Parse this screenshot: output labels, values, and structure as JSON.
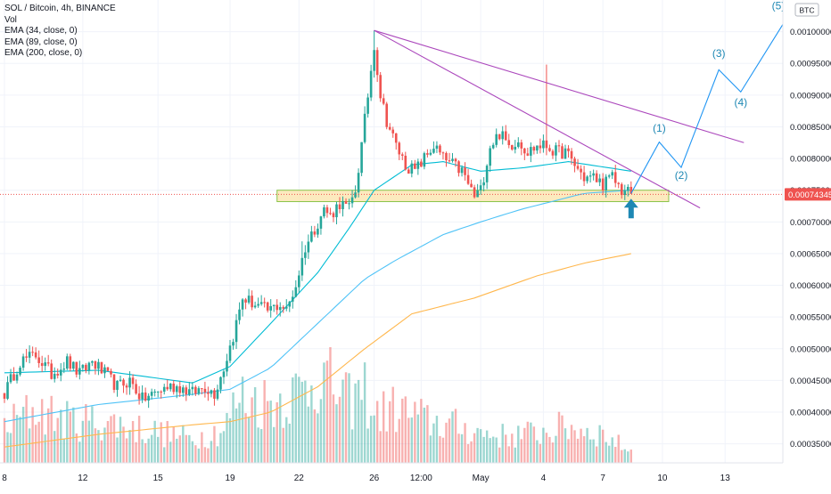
{
  "chart_data": {
    "type": "candlestick",
    "title": "SOL / Bitcoin, 4h, BINANCE",
    "indicators": [
      "Vol",
      "EMA (34, close, 0)",
      "EMA (89, close, 0)",
      "EMA (200, close, 0)"
    ],
    "currency": "BTC",
    "ylim": [
      0.00032,
      0.00105
    ],
    "y_ticks": [
      "0.00035000",
      "0.00040000",
      "0.00045000",
      "0.00050000",
      "0.00055000",
      "0.00060000",
      "0.00065000",
      "0.00070000",
      "0.00075000",
      "0.00080000",
      "0.00085000",
      "0.00090000",
      "0.00095000",
      "0.00100000"
    ],
    "y_tick_values": [
      0.00035,
      0.0004,
      0.00045,
      0.0005,
      0.00055,
      0.0006,
      0.00065,
      0.0007,
      0.00075,
      0.0008,
      0.00085,
      0.0009,
      0.00095,
      0.001
    ],
    "x_ticks": [
      "8",
      "12",
      "15",
      "19",
      "22",
      "26",
      "12:00",
      "May",
      "4",
      "7",
      "10",
      "13"
    ],
    "x_tick_index": [
      0,
      25,
      49,
      72,
      94,
      118,
      133,
      152,
      172,
      191,
      210,
      230
    ],
    "last_price": "0.00074345",
    "last_price_value": 0.00074345,
    "colors": {
      "up": "#26a69a",
      "down": "#ef5350",
      "ema34": "#00bcd4",
      "ema89": "#4fc3f7",
      "ema200": "#ffb74d",
      "trendline": "#ab47bc",
      "projection": "#2196f3",
      "zone_fill": "#fbe3a8",
      "zone_border": "#8bc34a",
      "arrow": "#1e88b4"
    },
    "candles_anchors": [
      [
        0,
        0.00043
      ],
      [
        5,
        0.00048
      ],
      [
        10,
        0.00049
      ],
      [
        15,
        0.00046
      ],
      [
        20,
        0.00048
      ],
      [
        24,
        0.00046
      ],
      [
        28,
        0.00048
      ],
      [
        32,
        0.00046
      ],
      [
        36,
        0.00044
      ],
      [
        40,
        0.00045
      ],
      [
        44,
        0.00042
      ],
      [
        48,
        0.00043
      ],
      [
        52,
        0.00044
      ],
      [
        56,
        0.00044
      ],
      [
        60,
        0.00043
      ],
      [
        64,
        0.00044
      ],
      [
        67,
        0.00043
      ],
      [
        70,
        0.00047
      ],
      [
        73,
        0.00052
      ],
      [
        76,
        0.00058
      ],
      [
        80,
        0.00057
      ],
      [
        84,
        0.00056
      ],
      [
        88,
        0.00057
      ],
      [
        90,
        0.00056
      ],
      [
        93,
        0.0006
      ],
      [
        96,
        0.00066
      ],
      [
        99,
        0.00069
      ],
      [
        102,
        0.00072
      ],
      [
        104,
        0.00071
      ],
      [
        107,
        0.00073
      ],
      [
        110,
        0.00072
      ],
      [
        112,
        0.00075
      ],
      [
        114,
        0.00082
      ],
      [
        116,
        0.0009
      ],
      [
        118,
        0.00098
      ],
      [
        120,
        0.0009
      ],
      [
        122,
        0.00086
      ],
      [
        125,
        0.00082
      ],
      [
        128,
        0.00079
      ],
      [
        131,
        0.00078
      ],
      [
        134,
        0.0008
      ],
      [
        137,
        0.00082
      ],
      [
        140,
        0.0008
      ],
      [
        143,
        0.00079
      ],
      [
        146,
        0.00078
      ],
      [
        148,
        0.00076
      ],
      [
        150,
        0.00074
      ],
      [
        152,
        0.00075
      ],
      [
        155,
        0.00082
      ],
      [
        158,
        0.00084
      ],
      [
        161,
        0.00082
      ],
      [
        164,
        0.00083
      ],
      [
        167,
        0.00081
      ],
      [
        170,
        0.00082
      ],
      [
        173,
        0.00082
      ],
      [
        176,
        0.00081
      ],
      [
        179,
        0.00081
      ],
      [
        182,
        0.00079
      ],
      [
        185,
        0.00077
      ],
      [
        188,
        0.00077
      ],
      [
        191,
        0.00076
      ],
      [
        194,
        0.00077
      ],
      [
        197,
        0.00075
      ],
      [
        200,
        0.000745
      ]
    ],
    "volume_anchors": [
      [
        0,
        0.3
      ],
      [
        10,
        0.45
      ],
      [
        20,
        0.35
      ],
      [
        30,
        0.35
      ],
      [
        40,
        0.3
      ],
      [
        50,
        0.25
      ],
      [
        60,
        0.2
      ],
      [
        70,
        0.28
      ],
      [
        75,
        0.55
      ],
      [
        85,
        0.5
      ],
      [
        95,
        0.6
      ],
      [
        100,
        0.75
      ],
      [
        110,
        0.5
      ],
      [
        115,
        0.6
      ],
      [
        118,
        0.4
      ],
      [
        125,
        0.45
      ],
      [
        135,
        0.35
      ],
      [
        145,
        0.3
      ],
      [
        152,
        0.25
      ],
      [
        160,
        0.22
      ],
      [
        170,
        0.25
      ],
      [
        180,
        0.3
      ],
      [
        190,
        0.25
      ],
      [
        200,
        0.1
      ]
    ],
    "ema34": [
      [
        0,
        0.000462
      ],
      [
        30,
        0.000466
      ],
      [
        60,
        0.000446
      ],
      [
        72,
        0.000472
      ],
      [
        85,
        0.00054
      ],
      [
        100,
        0.00062
      ],
      [
        110,
        0.00069
      ],
      [
        118,
        0.00075
      ],
      [
        130,
        0.00079
      ],
      [
        140,
        0.000795
      ],
      [
        152,
        0.00078
      ],
      [
        165,
        0.000785
      ],
      [
        180,
        0.000795
      ],
      [
        200,
        0.00078
      ]
    ],
    "ema89": [
      [
        0,
        0.000385
      ],
      [
        30,
        0.000412
      ],
      [
        60,
        0.000428
      ],
      [
        72,
        0.000436
      ],
      [
        85,
        0.00047
      ],
      [
        100,
        0.00054
      ],
      [
        115,
        0.00061
      ],
      [
        125,
        0.00064
      ],
      [
        140,
        0.00068
      ],
      [
        152,
        0.0007
      ],
      [
        165,
        0.00072
      ],
      [
        185,
        0.000745
      ],
      [
        200,
        0.00075
      ]
    ],
    "ema200": [
      [
        0,
        0.000345
      ],
      [
        30,
        0.000365
      ],
      [
        60,
        0.00038
      ],
      [
        72,
        0.000385
      ],
      [
        85,
        0.0004
      ],
      [
        100,
        0.00044
      ],
      [
        115,
        0.0005
      ],
      [
        130,
        0.000555
      ],
      [
        150,
        0.00058
      ],
      [
        170,
        0.000615
      ],
      [
        185,
        0.000635
      ],
      [
        200,
        0.00065
      ]
    ],
    "trendlines": [
      {
        "from": [
          118,
          0.001002
        ],
        "to": [
          236,
          0.000825
        ]
      },
      {
        "from": [
          118,
          0.001002
        ],
        "to": [
          222,
          0.000722
        ]
      }
    ],
    "zone": {
      "x": [
        87,
        212
      ],
      "y": [
        0.000732,
        0.00075
      ]
    },
    "projection_points": [
      [
        200,
        0.000745
      ],
      [
        209,
        0.000826
      ],
      [
        216,
        0.000786
      ],
      [
        228,
        0.00094
      ],
      [
        235,
        0.000905
      ],
      [
        249,
        0.001016
      ]
    ],
    "wave_labels": [
      {
        "text": "(1)",
        "x": 209,
        "y": 0.000842
      },
      {
        "text": "(2)",
        "x": 216,
        "y": 0.000768
      },
      {
        "text": "(3)",
        "x": 228,
        "y": 0.00096
      },
      {
        "text": "(4)",
        "x": 235,
        "y": 0.000883
      },
      {
        "text": "(5)",
        "x": 247,
        "y": 0.001035
      }
    ],
    "arrow_at": [
      200,
      0.000717
    ]
  }
}
